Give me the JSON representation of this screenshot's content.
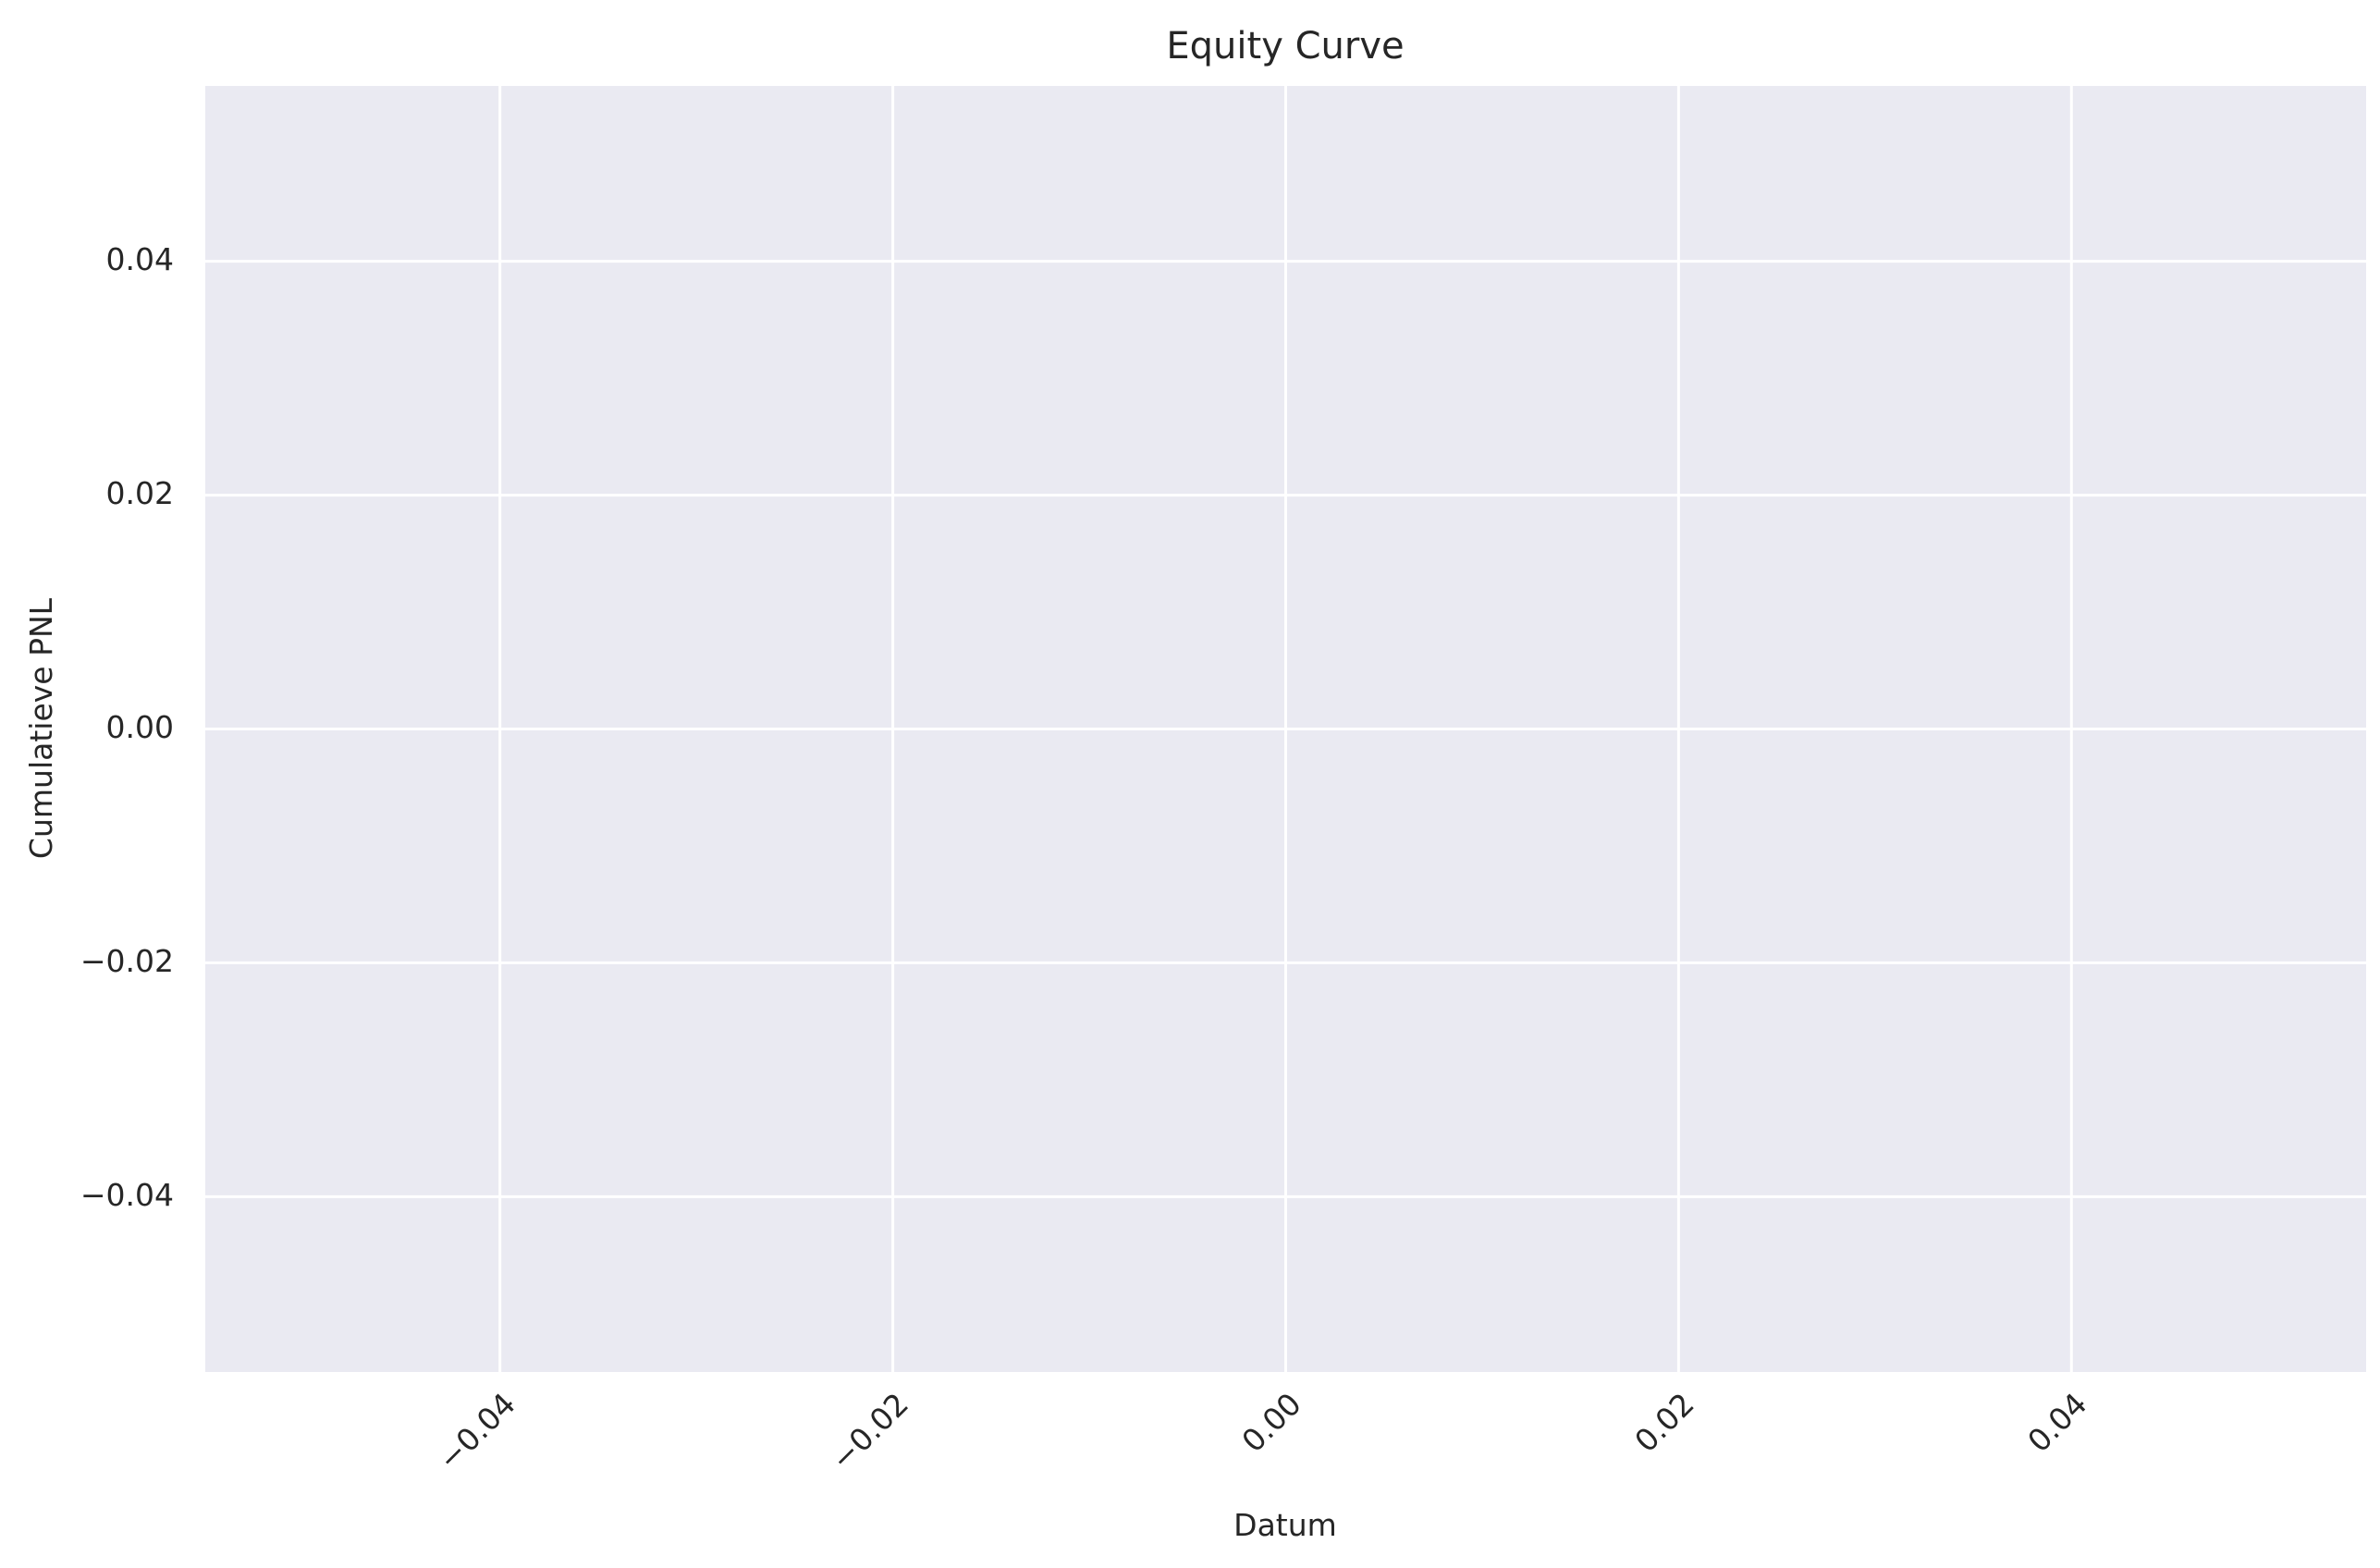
{
  "chart_data": {
    "type": "line",
    "title": "Equity Curve",
    "xlabel": "Datum",
    "ylabel": "Cumulatieve PNL",
    "xlim": [
      -0.055,
      0.055
    ],
    "ylim": [
      -0.055,
      0.055
    ],
    "x_ticks": [
      -0.04,
      -0.02,
      0.0,
      0.02,
      0.04
    ],
    "x_tick_labels": [
      "−0.04",
      "−0.02",
      "0.00",
      "0.02",
      "0.04"
    ],
    "y_ticks": [
      0.04,
      0.02,
      0.0,
      -0.02,
      -0.04
    ],
    "y_tick_labels": [
      "0.04",
      "0.02",
      "0.00",
      "−0.02",
      "−0.04"
    ],
    "x_tick_rotation_deg": 45,
    "grid": true,
    "series": [],
    "colors": {
      "plot_background": "#eaeaf2",
      "grid": "#ffffff",
      "text": "#262626"
    }
  }
}
